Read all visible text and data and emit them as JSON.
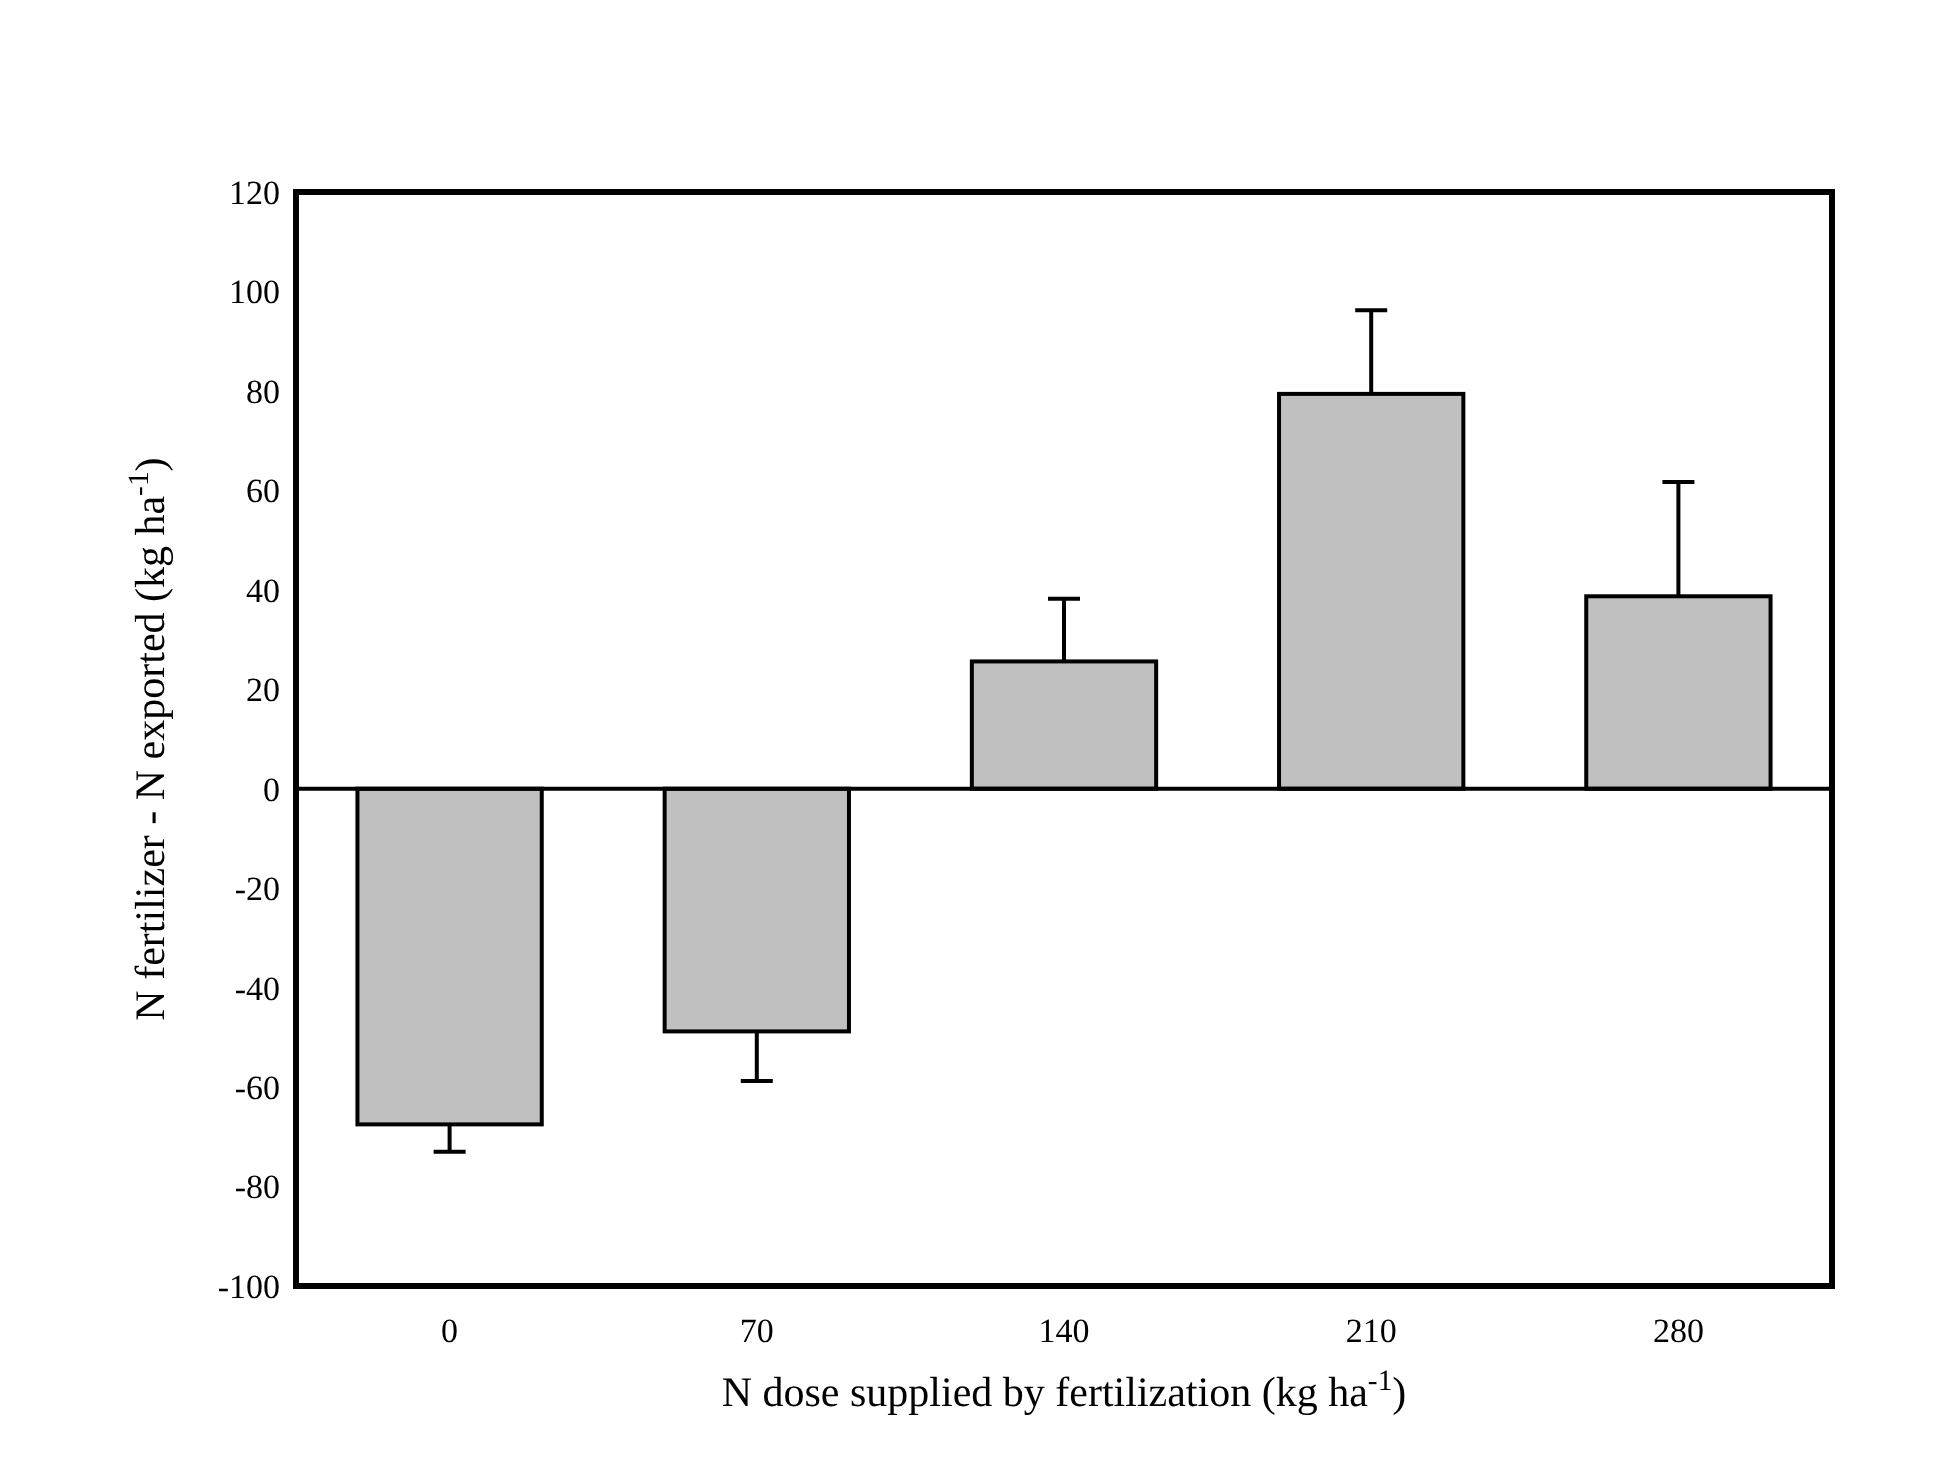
{
  "chart_data": {
    "type": "bar",
    "xlabel": "N dose supplied by fertilization (kg ha$^{-1}$)",
    "ylabel": "N fertilizer - N exported (kg ha$^{-1}$)",
    "categories": [
      "0",
      "70",
      "140",
      "210",
      "280"
    ],
    "values": [
      -67.5,
      -48.8,
      25.6,
      79.4,
      38.7
    ],
    "errors": [
      [
        -73,
        -67.5
      ],
      [
        -58.8,
        -48.8
      ],
      [
        25.6,
        38.2
      ],
      [
        79.4,
        96.2
      ],
      [
        38.7,
        61.7
      ]
    ],
    "color": "#c0c0c0",
    "ylim": [
      -100,
      120
    ],
    "yticks": [
      -100,
      -80,
      -60,
      -40,
      -20,
      0,
      20,
      40,
      60,
      80,
      100,
      120
    ]
  }
}
